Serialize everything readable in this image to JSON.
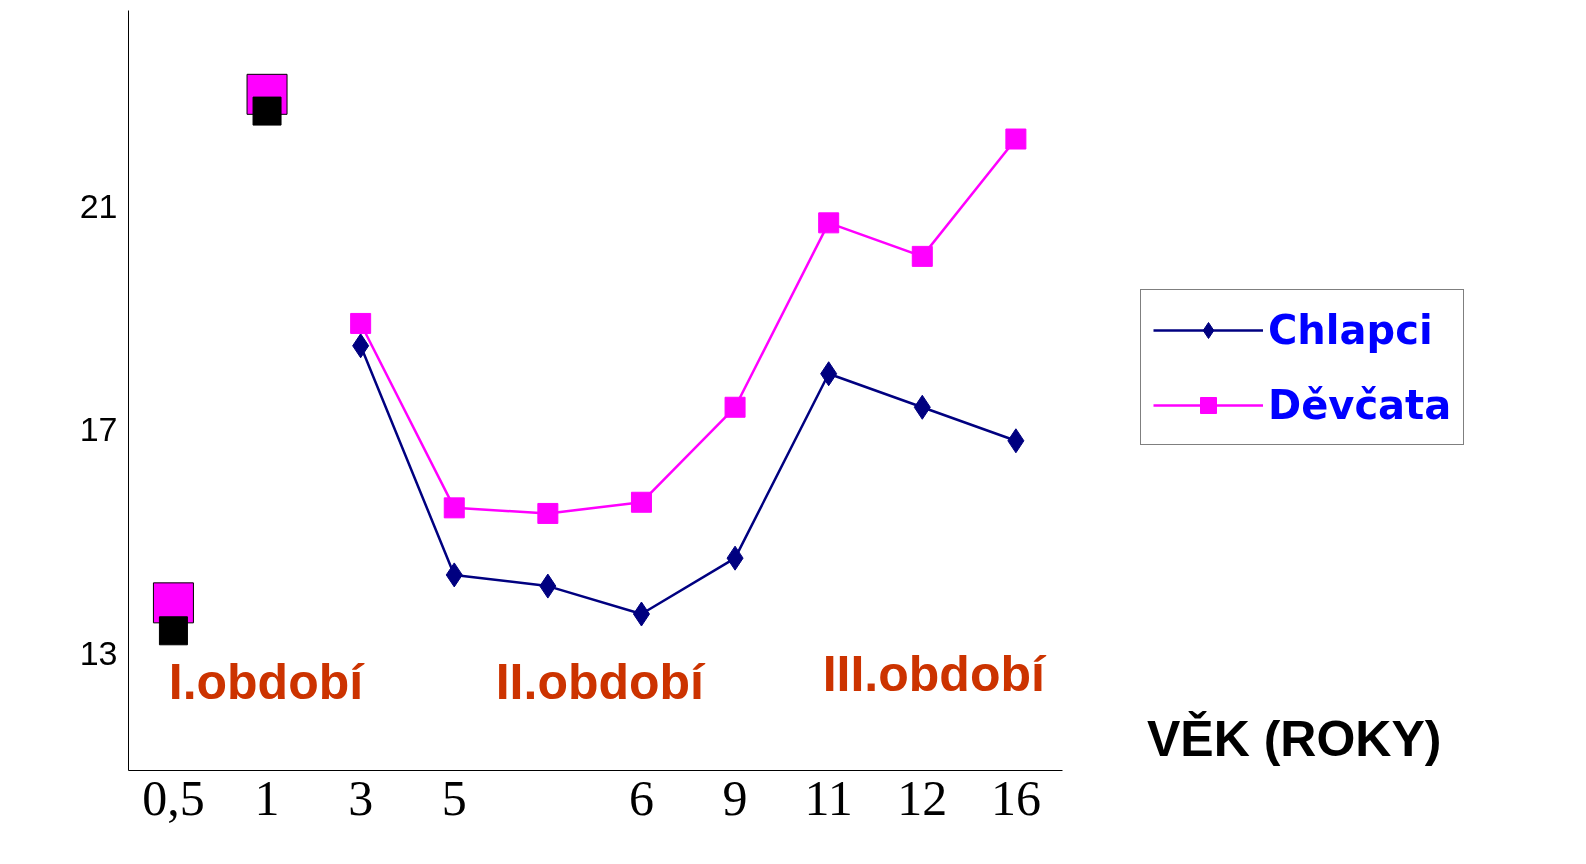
{
  "chart_data": {
    "type": "line",
    "xlabel": "VĚK (ROKY)",
    "categories": [
      "0,5",
      "1",
      "3",
      "5",
      null,
      "6",
      "9",
      "11",
      "12",
      "16"
    ],
    "ylim": [
      10.9,
      24.5
    ],
    "yticks": [
      13,
      17,
      21
    ],
    "series": [
      {
        "name": "Chlapci",
        "color": "#000080",
        "marker": "diamond",
        "values": [
          null,
          null,
          18.5,
          14.4,
          14.2,
          13.7,
          14.7,
          18.0,
          17.4,
          16.8
        ]
      },
      {
        "name": "Děvčata",
        "color": "#ff00ff",
        "marker": "square",
        "values": [
          null,
          null,
          18.9,
          15.6,
          15.5,
          15.7,
          17.4,
          20.7,
          20.1,
          22.2
        ]
      },
      {
        "type": "scatter",
        "color": "#ff00ff",
        "marker": "square",
        "values": [
          13.9,
          23.0,
          null,
          null,
          null,
          null,
          null,
          null,
          null,
          null
        ]
      },
      {
        "type": "scatter",
        "color": "#000000",
        "marker": "square",
        "values": [
          13.4,
          22.7,
          null,
          null,
          null,
          null,
          null,
          null,
          null,
          null
        ]
      }
    ],
    "annotations": [
      "I.období",
      "II.období",
      "III.období"
    ],
    "legend": "right",
    "grid": false
  }
}
